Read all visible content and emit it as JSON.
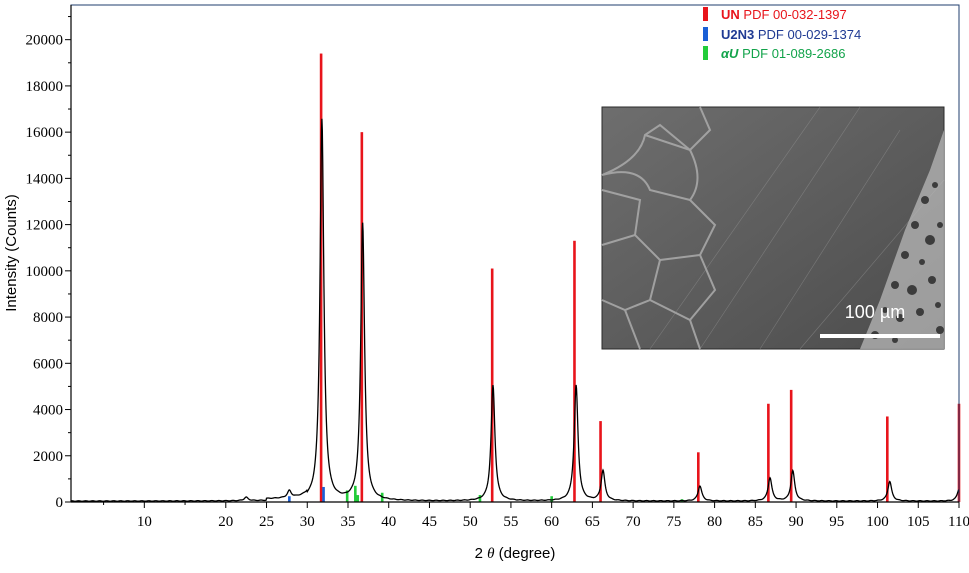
{
  "chart_data": {
    "type": "line",
    "xlabel_prefix": "2",
    "xlabel_symbol": "θ",
    "xlabel_suffix": "(degree)",
    "ylabel": "Intensity (Counts)",
    "xlim": [
      1,
      110
    ],
    "ylim": [
      0,
      21500
    ],
    "x_ticks": [
      10,
      20,
      25,
      30,
      35,
      40,
      45,
      50,
      55,
      60,
      65,
      70,
      75,
      80,
      85,
      90,
      95,
      100,
      105,
      110
    ],
    "y_ticks": [
      0,
      2000,
      4000,
      6000,
      8000,
      10000,
      12000,
      14000,
      16000,
      18000,
      20000
    ],
    "grid": false,
    "legend_position": "top-right",
    "colors": {
      "measured": "#000000",
      "UN": "#e8141b",
      "U2N3": "#1a5fd6",
      "alphaU": "#22cc3a",
      "U2N3_text": "#1f3a93",
      "alphaU_text": "#12a34a"
    },
    "legend": [
      {
        "key": "UN",
        "label": "UN",
        "ref": "PDF 00-032-1397"
      },
      {
        "key": "U2N3",
        "label": "U2N3",
        "ref": "PDF 00-029-1374"
      },
      {
        "key": "alphaU",
        "label": "αU",
        "ref": "PDF 01-089-2686"
      }
    ],
    "measured_peaks": [
      {
        "x": 22.5,
        "y": 150
      },
      {
        "x": 27.8,
        "y": 300
      },
      {
        "x": 31.8,
        "y": 16500
      },
      {
        "x": 36.8,
        "y": 12000
      },
      {
        "x": 52.8,
        "y": 5000
      },
      {
        "x": 63.0,
        "y": 5000
      },
      {
        "x": 66.3,
        "y": 1300
      },
      {
        "x": 78.2,
        "y": 650
      },
      {
        "x": 86.8,
        "y": 1000
      },
      {
        "x": 89.6,
        "y": 1300
      },
      {
        "x": 101.5,
        "y": 850
      },
      {
        "x": 110.0,
        "y": 500
      }
    ],
    "reference_series": [
      {
        "name": "UN",
        "x": [
          31.7,
          36.7,
          52.7,
          62.8,
          66.0,
          78.0,
          86.6,
          89.4,
          101.2,
          110.0
        ],
        "values": [
          19400,
          16000,
          10100,
          11300,
          3500,
          2150,
          4250,
          4850,
          3700,
          4250
        ]
      },
      {
        "name": "U2N3",
        "x": [
          27.8,
          32.0
        ],
        "values": [
          250,
          650
        ]
      },
      {
        "name": "αU",
        "x": [
          34.9,
          35.9,
          36.2,
          39.2,
          51.2,
          60.0,
          76.0
        ],
        "values": [
          500,
          700,
          300,
          400,
          300,
          250,
          120
        ]
      }
    ]
  },
  "inset": {
    "scale_bar_label": "100 µm"
  }
}
